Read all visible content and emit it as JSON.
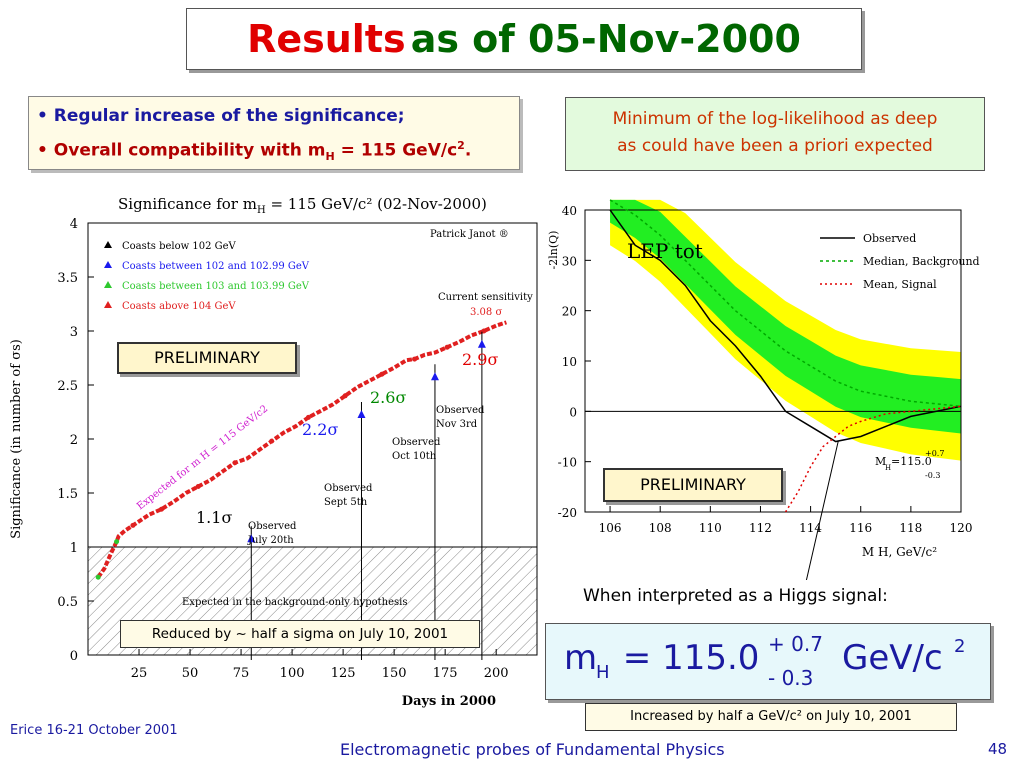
{
  "slide": {
    "title_word1": "Results",
    "title_rest": "as of  05-Nov-2000",
    "bullet1": "• Regular increase of the significance;",
    "bullet2_pre": "• Overall compatibility with m",
    "bullet2_sub": "H",
    "bullet2_post": " = 115 GeV/c",
    "bullet2_sup": "2",
    "bullet2_end": ".",
    "min_line1": "Minimum of the log-likelihood as deep",
    "min_line2": "as could have been a priori expected",
    "preliminary_left": "PRELIMINARY",
    "preliminary_right": "PRELIMINARY",
    "reduced_note": "Reduced by ~ half a sigma on July 10, 2001",
    "interpreted": "When interpreted as a Higgs signal:",
    "mh_label": "m",
    "mh_sub": "H",
    "mh_value": " = 115.0",
    "mh_err_plus": "+ 0.7",
    "mh_err_minus": "- 0.3",
    "mh_unit": "GeV/c",
    "mh_unit_sup": "2",
    "increased_note": "Increased by half a GeV/c² on July 10, 2001",
    "footer_left": "Erice 16-21 October 2001",
    "footer_mid": "Electromagnetic probes of Fundamental Physics",
    "page_number": "48",
    "colors": {
      "title_red": "#e00000",
      "title_green": "#006600",
      "footer_blue": "#1a1aa0"
    }
  },
  "chart_data": [
    {
      "type": "scatter",
      "title": "Significance for m",
      "title_sub": "H",
      "title_rest": " = 115 GeV/c² (02-Nov-2000)",
      "author": "Patrick Janot ®",
      "xlabel": "Days in 2000",
      "ylabel": "Significance (in number of σs)",
      "xlim": [
        0,
        220
      ],
      "ylim": [
        0,
        4
      ],
      "xticks": [
        "25",
        "50",
        "75",
        "100",
        "125",
        "150",
        "175",
        "200"
      ],
      "yticks": [
        "0",
        "0.5",
        "1",
        "1.5",
        "2",
        "2.5",
        "3",
        "3.5",
        "4"
      ],
      "legend": [
        "Coasts below 102  GeV",
        "Coasts between 102 and 102.99 GeV",
        "Coasts between 103 and 103.99 GeV",
        "Coasts above 104 GeV"
      ],
      "legend_colors": [
        "#000000",
        "#1a1aee",
        "#2ec82e",
        "#e02020"
      ],
      "current_sensitivity": "Current sensitivity",
      "current_value": "3.08 σ",
      "expected_label": "Expected for m H = 115 GeV/c2",
      "background_label": "Expected in the background-only hypothesis",
      "series": [
        {
          "x": [
            5,
            8,
            11,
            14,
            15,
            18,
            22,
            26,
            30,
            36,
            42,
            48,
            54,
            60,
            66,
            72,
            78,
            84,
            90,
            96,
            102,
            108,
            114,
            120,
            126,
            132,
            138,
            144,
            150,
            156,
            160,
            165,
            170,
            176,
            182,
            188,
            194,
            200,
            205
          ],
          "y": [
            0.72,
            0.8,
            0.93,
            1.05,
            1.1,
            1.15,
            1.2,
            1.25,
            1.3,
            1.35,
            1.42,
            1.5,
            1.56,
            1.62,
            1.7,
            1.78,
            1.82,
            1.9,
            1.98,
            2.06,
            2.12,
            2.2,
            2.26,
            2.32,
            2.4,
            2.48,
            2.54,
            2.6,
            2.66,
            2.73,
            2.74,
            2.78,
            2.8,
            2.85,
            2.9,
            2.96,
            3.0,
            3.05,
            3.08
          ]
        }
      ],
      "annotations": [
        {
          "label": "1.1σ",
          "x": 80,
          "y": 1.1,
          "text1": "Observed",
          "text2": "July 20th"
        },
        {
          "label": "2.2σ",
          "x": 134,
          "y": 2.25,
          "text1": "Observed",
          "text2": "Sept 5th"
        },
        {
          "label": "2.6σ",
          "x": 170,
          "y": 2.6,
          "text1": "Observed",
          "text2": "Oct 10th"
        },
        {
          "label": "2.9σ",
          "x": 193,
          "y": 2.9,
          "text1": "Observed",
          "text2": "Nov 3rd"
        }
      ]
    },
    {
      "type": "line",
      "title": "LEP tot",
      "ylabel_partial": "-2ln(Q)",
      "xlabel": "M H, GeV/c²",
      "xlim": [
        105,
        120
      ],
      "ylim": [
        -20,
        40
      ],
      "xticks": [
        "106",
        "108",
        "110",
        "112",
        "114",
        "116",
        "118",
        "120"
      ],
      "yticks": [
        "40",
        "30",
        "20",
        "10",
        "0",
        "-10",
        "-20"
      ],
      "legend": [
        "Observed",
        "Median, Background",
        "Mean, Signal"
      ],
      "mass_label": "M",
      "mass_sub": "H",
      "mass_value": "=115.0",
      "mass_plus": "+0.7",
      "mass_minus": "-0.3",
      "series": [
        {
          "name": "Observed",
          "x": [
            106,
            107,
            108,
            109,
            110,
            111,
            112,
            113,
            114,
            115,
            116,
            117,
            118,
            119,
            120
          ],
          "y": [
            40,
            33,
            30,
            25,
            18,
            13,
            7,
            0,
            -3,
            -6,
            -5,
            -3,
            -1,
            0,
            1
          ]
        },
        {
          "name": "Median, Background",
          "x": [
            106,
            107,
            108,
            109,
            110,
            111,
            112,
            113,
            114,
            115,
            116,
            117,
            118,
            119,
            120
          ],
          "y": [
            42,
            39,
            35,
            30,
            25,
            20,
            16,
            12,
            9,
            6,
            4,
            3,
            2,
            1.5,
            1
          ]
        },
        {
          "name": "Mean, Signal",
          "x": [
            113,
            113.5,
            114,
            114.5,
            115,
            115.5,
            116,
            117,
            118,
            119,
            120
          ],
          "y": [
            -20,
            -16,
            -11,
            -7,
            -5,
            -3,
            -2,
            -0.5,
            0,
            0.5,
            1
          ]
        }
      ]
    }
  ]
}
